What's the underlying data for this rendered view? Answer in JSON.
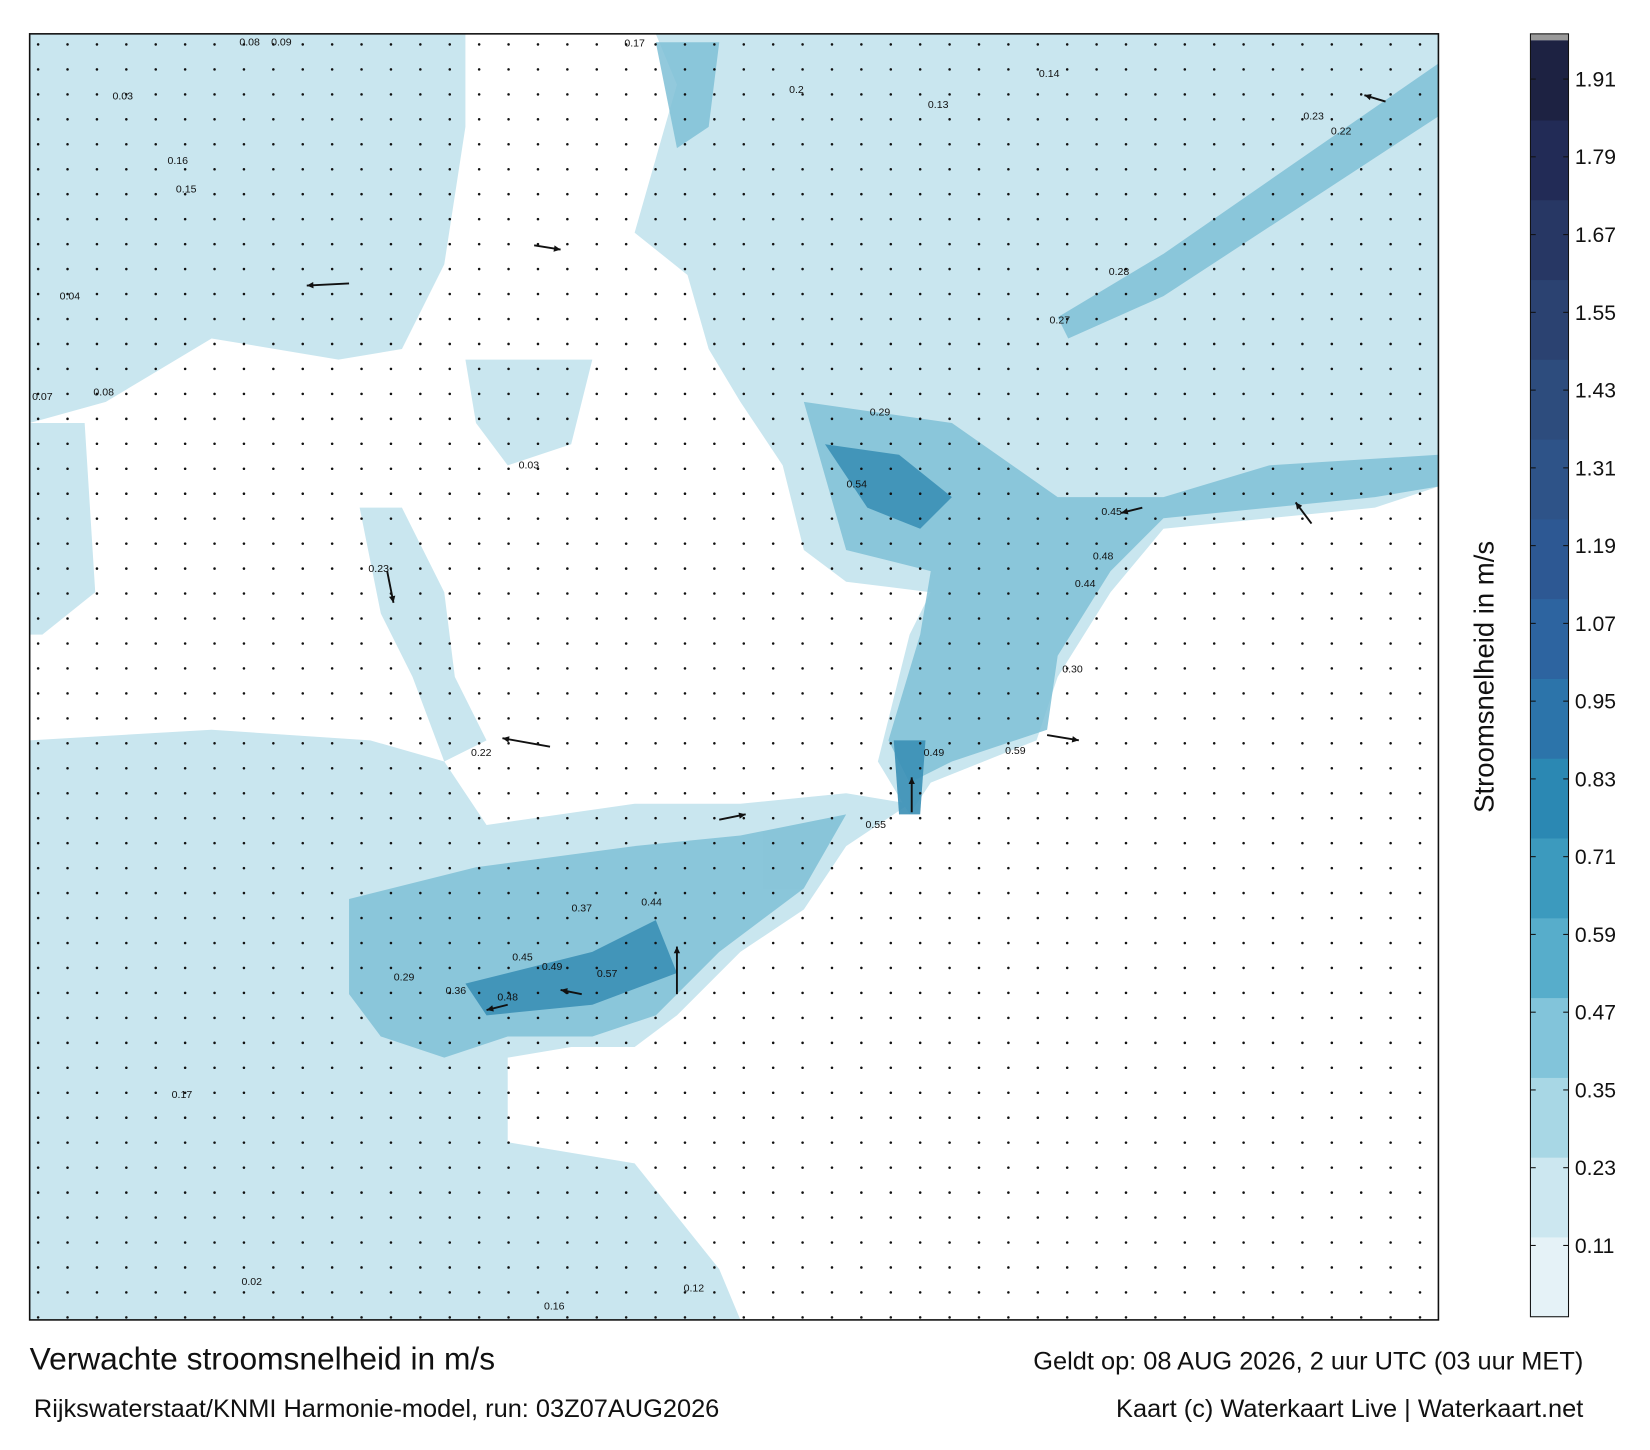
{
  "title": "Verwachte stroomsnelheid in m/s",
  "subtitle": "Rijkswaterstaat/KNMI Harmonie-model, run: 03Z07AUG2026",
  "valid_time": "Geldt op: 08 AUG 2026, 2 uur UTC (03 uur MET)",
  "credit": "Kaart (c) Waterkaart Live | Waterkaart.net",
  "colorbar": {
    "label": "Stroomsnelheid in m/s",
    "range": [
      0,
      1.97
    ],
    "ticks": [
      0.11,
      0.23,
      0.35,
      0.47,
      0.59,
      0.71,
      0.83,
      0.95,
      1.07,
      1.19,
      1.31,
      1.43,
      1.55,
      1.67,
      1.79,
      1.91
    ],
    "colors": [
      "#f2f8fa",
      "#c9e6ef",
      "#8fcbde",
      "#4aa6c6",
      "#2b8ab4",
      "#2d6aa6",
      "#2d5792",
      "#2e4f80",
      "#2a3f6e",
      "#222c58",
      "#1b1d38"
    ]
  },
  "map": {
    "labels": [
      "0.08",
      "0.09",
      "0.03",
      "0.16",
      "0.15",
      "0.04",
      "0.07",
      "0.08",
      "0.17",
      "0.2",
      "0.13",
      "0.14",
      "0.23",
      "0.22",
      "0.28",
      "0.27",
      "0.54",
      "0.29",
      "0.45",
      "0.48",
      "0.44",
      "0.30",
      "0.49",
      "0.59",
      "0.55",
      "0.44",
      "0.49",
      "0.57",
      "0.48",
      "0.36",
      "0.29",
      "0.45",
      "0.37",
      "0.17",
      "0.02",
      "0.16",
      "0.12",
      "0.22",
      "0.03",
      "0.23"
    ]
  }
}
